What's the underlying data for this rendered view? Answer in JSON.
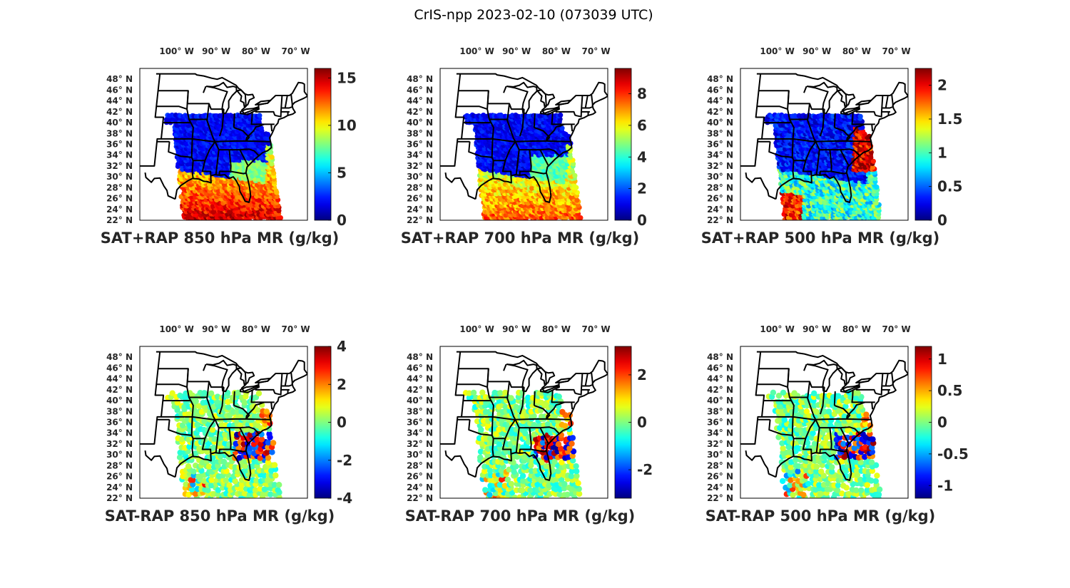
{
  "figure": {
    "title": "CrIS-npp 2023-02-10 (073039 UTC)"
  },
  "map_axes": {
    "lon_ticks": [
      {
        "lon": -100,
        "label": "100° W"
      },
      {
        "lon": -90,
        "label": "90° W"
      },
      {
        "lon": -80,
        "label": "80° W"
      },
      {
        "lon": -70,
        "label": "70° W"
      }
    ],
    "lat_ticks": [
      {
        "lat": 48,
        "label": "48° N"
      },
      {
        "lat": 46,
        "label": "46° N"
      },
      {
        "lat": 44,
        "label": "44° N"
      },
      {
        "lat": 42,
        "label": "42° N"
      },
      {
        "lat": 40,
        "label": "40° N"
      },
      {
        "lat": 38,
        "label": "38° N"
      },
      {
        "lat": 36,
        "label": "36° N"
      },
      {
        "lat": 34,
        "label": "34° N"
      },
      {
        "lat": 32,
        "label": "32° N"
      },
      {
        "lat": 30,
        "label": "30° N"
      },
      {
        "lat": 28,
        "label": "28° N"
      },
      {
        "lat": 26,
        "label": "26° N"
      },
      {
        "lat": 24,
        "label": "24° N"
      },
      {
        "lat": 22,
        "label": "22° N"
      }
    ],
    "lon_range": [
      -105,
      -67
    ],
    "lat_range": [
      22,
      50
    ],
    "colormap": "jet"
  },
  "panels": [
    {
      "id": "sat-plus-rap-850",
      "title": "SAT+RAP 850 hPa MR (g/kg)",
      "kind": "sum",
      "level": 850,
      "clim": [
        0,
        16
      ],
      "ticks": [
        {
          "v": 0,
          "label": "0"
        },
        {
          "v": 5,
          "label": "5"
        },
        {
          "v": 10,
          "label": "10"
        },
        {
          "v": 15,
          "label": "15"
        }
      ]
    },
    {
      "id": "sat-plus-rap-700",
      "title": "SAT+RAP 700 hPa MR (g/kg)",
      "kind": "sum",
      "level": 700,
      "clim": [
        0,
        9.6
      ],
      "ticks": [
        {
          "v": 0,
          "label": "0"
        },
        {
          "v": 2,
          "label": "2"
        },
        {
          "v": 4,
          "label": "4"
        },
        {
          "v": 6,
          "label": "6"
        },
        {
          "v": 8,
          "label": "8"
        }
      ]
    },
    {
      "id": "sat-plus-rap-500",
      "title": "SAT+RAP 500 hPa MR (g/kg)",
      "kind": "sum",
      "level": 500,
      "clim": [
        0,
        2.25
      ],
      "ticks": [
        {
          "v": 0,
          "label": "0"
        },
        {
          "v": 0.5,
          "label": "0.5"
        },
        {
          "v": 1,
          "label": "1"
        },
        {
          "v": 1.5,
          "label": "1.5"
        },
        {
          "v": 2,
          "label": "2"
        }
      ]
    },
    {
      "id": "sat-minus-rap-850",
      "title": "SAT-RAP 850 hPa MR (g/kg)",
      "kind": "diff",
      "level": 850,
      "clim": [
        -4,
        4
      ],
      "ticks": [
        {
          "v": -4,
          "label": "-4"
        },
        {
          "v": -2,
          "label": "-2"
        },
        {
          "v": 0,
          "label": "0"
        },
        {
          "v": 2,
          "label": "2"
        },
        {
          "v": 4,
          "label": "4"
        }
      ]
    },
    {
      "id": "sat-minus-rap-700",
      "title": "SAT-RAP 700 hPa MR (g/kg)",
      "kind": "diff",
      "level": 700,
      "clim": [
        -3.2,
        3.2
      ],
      "ticks": [
        {
          "v": -2,
          "label": "-2"
        },
        {
          "v": 0,
          "label": "0"
        },
        {
          "v": 2,
          "label": "2"
        }
      ]
    },
    {
      "id": "sat-minus-rap-500",
      "title": "SAT-RAP 500 hPa MR (g/kg)",
      "kind": "diff",
      "level": 500,
      "clim": [
        -1.2,
        1.2
      ],
      "ticks": [
        {
          "v": -1,
          "label": "-1"
        },
        {
          "v": -0.5,
          "label": "-0.5"
        },
        {
          "v": 0,
          "label": "0"
        },
        {
          "v": 0.5,
          "label": "0.5"
        },
        {
          "v": 1,
          "label": "1"
        }
      ]
    }
  ]
}
